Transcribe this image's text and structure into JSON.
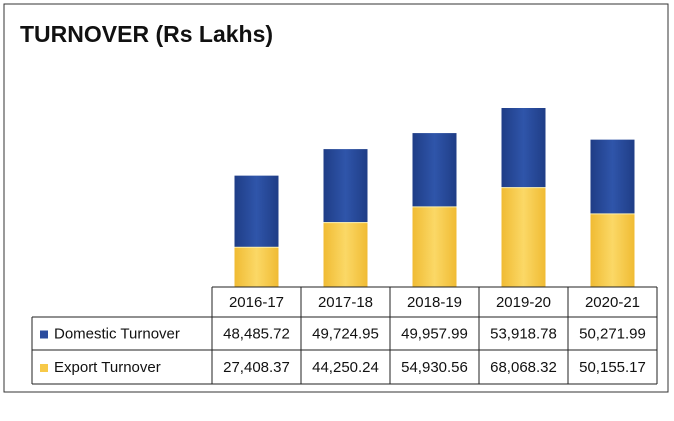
{
  "chart_data": {
    "type": "bar",
    "title": "TURNOVER (Rs Lakhs)",
    "categories": [
      "2016-17",
      "2017-18",
      "2018-19",
      "2019-20",
      "2020-21"
    ],
    "stacked": true,
    "series": [
      {
        "name": "Domestic Turnover",
        "color": "#2a4c9e",
        "values": [
          48485.72,
          49724.95,
          49957.99,
          53918.78,
          50271.99
        ],
        "value_labels": [
          "48,485.72",
          "49,724.95",
          "49,957.99",
          "53,918.78",
          "50,271.99"
        ]
      },
      {
        "name": "Export Turnover",
        "color": "#f7c948",
        "values": [
          27408.37,
          44250.24,
          54930.56,
          68068.32,
          50155.17
        ],
        "value_labels": [
          "27,408.37",
          "44,250.24",
          "54,930.56",
          "68,068.32",
          "50,155.17"
        ]
      }
    ]
  }
}
